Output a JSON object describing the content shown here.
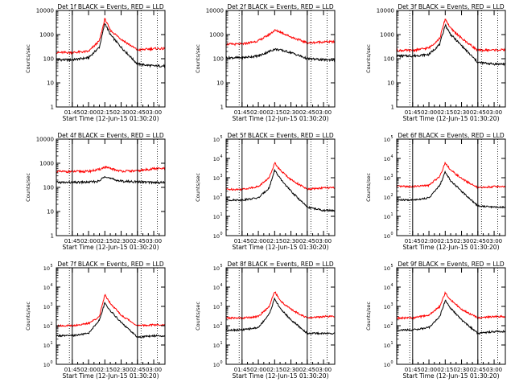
{
  "colors": {
    "events": "#000000",
    "lld": "#ff0000",
    "axis": "#000000",
    "background": "#ffffff"
  },
  "x_tick_labels": [
    "01:45",
    "02:00",
    "02:15",
    "02:30",
    "02:45",
    "03:00"
  ],
  "x_label": "Start Time (12-Jun-15 01:30:20)",
  "y_label": "Counts/sec",
  "panels": [
    {
      "title": "Det 1f BLACK = Events, RED = LLD",
      "y_axis": "plain"
    },
    {
      "title": "Det 2f BLACK = Events, RED = LLD",
      "y_axis": "plain"
    },
    {
      "title": "Det 3f BLACK = Events, RED = LLD",
      "y_axis": "plain"
    },
    {
      "title": "Det 4f BLACK = Events, RED = LLD",
      "y_axis": "plain"
    },
    {
      "title": "Det 5f BLACK = Events, RED = LLD",
      "y_axis": "exp"
    },
    {
      "title": "Det 6f BLACK = Events, RED = LLD",
      "y_axis": "exp"
    },
    {
      "title": "Det 7f BLACK = Events, RED = LLD",
      "y_axis": "exp"
    },
    {
      "title": "Det 8f BLACK = Events, RED = LLD",
      "y_axis": "exp"
    },
    {
      "title": "Det 9f BLACK = Events, RED = LLD",
      "y_axis": "exp"
    }
  ],
  "y_tick_labels_plain": [
    "1",
    "10",
    "100",
    "1000",
    "10000"
  ],
  "y_tick_labels_exp": [
    {
      "base": "10",
      "exp": "0"
    },
    {
      "base": "10",
      "exp": "1"
    },
    {
      "base": "10",
      "exp": "2"
    },
    {
      "base": "10",
      "exp": "3"
    },
    {
      "base": "10",
      "exp": "4"
    },
    {
      "base": "10",
      "exp": "5"
    }
  ],
  "chart_data": [
    {
      "type": "line",
      "title": "Det 1f BLACK = Events, RED = LLD",
      "xlabel": "Start Time (12-Jun-15 01:30:20)",
      "ylabel": "Counts/sec",
      "yscale": "log",
      "ylim": [
        1,
        10000
      ],
      "x": [
        "01:45",
        "02:00",
        "02:10",
        "02:15",
        "02:20",
        "02:30",
        "02:45",
        "03:00"
      ],
      "series": [
        {
          "values": [
            90,
            110,
            300,
            3000,
            1000,
            300,
            60,
            50
          ]
        },
        {
          "values": [
            180,
            200,
            550,
            4500,
            1500,
            650,
            230,
            260
          ]
        }
      ]
    },
    {
      "type": "line",
      "title": "Det 2f BLACK = Events, RED = LLD",
      "xlabel": "Start Time (12-Jun-15 01:30:20)",
      "ylabel": "Counts/sec",
      "yscale": "log",
      "ylim": [
        1,
        10000
      ],
      "x": [
        "01:45",
        "02:00",
        "02:10",
        "02:15",
        "02:20",
        "02:30",
        "02:45",
        "03:00"
      ],
      "series": [
        {
          "values": [
            110,
            130,
            200,
            250,
            230,
            180,
            100,
            90
          ]
        },
        {
          "values": [
            400,
            550,
            1000,
            1500,
            1300,
            800,
            450,
            500
          ]
        }
      ]
    },
    {
      "type": "line",
      "title": "Det 3f BLACK = Events, RED = LLD",
      "xlabel": "Start Time (12-Jun-15 01:30:20)",
      "ylabel": "Counts/sec",
      "yscale": "log",
      "ylim": [
        1,
        10000
      ],
      "x": [
        "01:45",
        "02:00",
        "02:10",
        "02:15",
        "02:20",
        "02:30",
        "02:45",
        "03:00"
      ],
      "series": [
        {
          "values": [
            130,
            150,
            400,
            2500,
            1000,
            350,
            70,
            60
          ]
        },
        {
          "values": [
            220,
            280,
            700,
            4500,
            1800,
            700,
            220,
            230
          ]
        }
      ]
    },
    {
      "type": "line",
      "title": "Det 4f BLACK = Events, RED = LLD",
      "xlabel": "Start Time (12-Jun-15 01:30:20)",
      "ylabel": "Counts/sec",
      "yscale": "log",
      "ylim": [
        1,
        10000
      ],
      "x": [
        "01:45",
        "02:00",
        "02:10",
        "02:15",
        "02:20",
        "02:30",
        "02:45",
        "03:00"
      ],
      "series": [
        {
          "values": [
            160,
            165,
            180,
            300,
            230,
            180,
            170,
            160
          ]
        },
        {
          "values": [
            450,
            460,
            550,
            700,
            600,
            470,
            480,
            600
          ]
        }
      ]
    },
    {
      "type": "line",
      "title": "Det 5f BLACK = Events, RED = LLD",
      "xlabel": "Start Time (12-Jun-15 01:30:20)",
      "ylabel": "Counts/sec",
      "yscale": "log",
      "ylim": [
        1,
        100000
      ],
      "x": [
        "01:45",
        "02:00",
        "02:10",
        "02:15",
        "02:20",
        "02:30",
        "02:45",
        "03:00"
      ],
      "series": [
        {
          "values": [
            70,
            90,
            300,
            2500,
            900,
            200,
            30,
            20
          ]
        },
        {
          "values": [
            250,
            350,
            1000,
            6000,
            2500,
            800,
            250,
            300
          ]
        }
      ]
    },
    {
      "type": "line",
      "title": "Det 6f BLACK = Events, RED = LLD",
      "xlabel": "Start Time (12-Jun-15 01:30:20)",
      "ylabel": "Counts/sec",
      "yscale": "log",
      "ylim": [
        1,
        100000
      ],
      "x": [
        "01:45",
        "02:00",
        "02:10",
        "02:15",
        "02:20",
        "02:30",
        "02:45",
        "03:00"
      ],
      "series": [
        {
          "values": [
            70,
            90,
            400,
            2000,
            700,
            200,
            35,
            30
          ]
        },
        {
          "values": [
            350,
            400,
            1200,
            6000,
            2500,
            900,
            300,
            350
          ]
        }
      ]
    },
    {
      "type": "line",
      "title": "Det 7f BLACK = Events, RED = LLD",
      "xlabel": "Start Time (12-Jun-15 01:30:20)",
      "ylabel": "Counts/sec",
      "yscale": "log",
      "ylim": [
        1,
        100000
      ],
      "x": [
        "01:45",
        "02:00",
        "02:10",
        "02:15",
        "02:20",
        "02:30",
        "02:45",
        "03:00"
      ],
      "series": [
        {
          "values": [
            30,
            40,
            200,
            1500,
            600,
            150,
            25,
            30
          ]
        },
        {
          "values": [
            100,
            130,
            300,
            4000,
            1500,
            350,
            100,
            110
          ]
        }
      ]
    },
    {
      "type": "line",
      "title": "Det 8f BLACK = Events, RED = LLD",
      "xlabel": "Start Time (12-Jun-15 01:30:20)",
      "ylabel": "Counts/sec",
      "yscale": "log",
      "ylim": [
        1,
        100000
      ],
      "x": [
        "01:45",
        "02:00",
        "02:10",
        "02:15",
        "02:20",
        "02:30",
        "02:45",
        "03:00"
      ],
      "series": [
        {
          "values": [
            60,
            80,
            400,
            2500,
            800,
            200,
            40,
            40
          ]
        },
        {
          "values": [
            250,
            300,
            1000,
            6000,
            2000,
            700,
            250,
            300
          ]
        }
      ]
    },
    {
      "type": "line",
      "title": "Det 9f BLACK = Events, RED = LLD",
      "xlabel": "Start Time (12-Jun-15 01:30:20)",
      "ylabel": "Counts/sec",
      "yscale": "log",
      "ylim": [
        1,
        100000
      ],
      "x": [
        "01:45",
        "02:00",
        "02:10",
        "02:15",
        "02:20",
        "02:30",
        "02:45",
        "03:00"
      ],
      "series": [
        {
          "values": [
            60,
            80,
            300,
            2000,
            800,
            200,
            40,
            50
          ]
        },
        {
          "values": [
            250,
            350,
            1000,
            5000,
            2200,
            700,
            250,
            300
          ]
        }
      ]
    }
  ]
}
